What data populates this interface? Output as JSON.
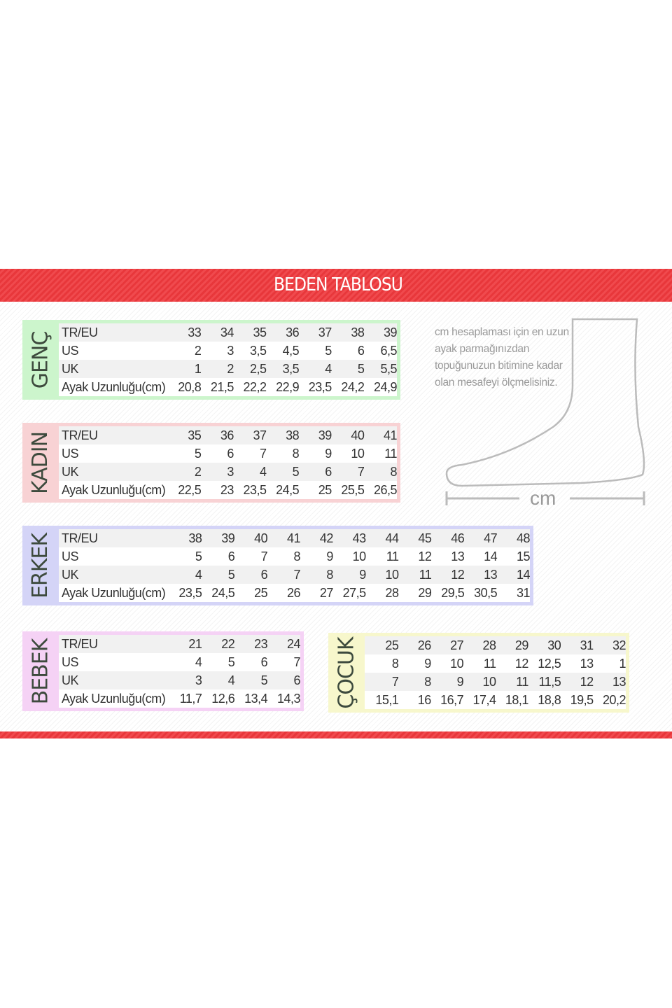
{
  "title": "BEDEN TABLOSU",
  "note": "cm hesaplaması için en uzun ayak parmağınızdan topuğunuzun bitimine kadar olan mesafeyi ölçmelisiniz.",
  "cm_label": "cm",
  "colors": {
    "band": "#e8373b",
    "genc": "#ccf5cc",
    "kadin": "#f8d2d4",
    "erkek": "#d4d4f7",
    "bebek": "#f5d2f5",
    "cocuk": "#f7f7cc"
  },
  "tables": {
    "genc": {
      "label": "GENÇ",
      "rows": [
        {
          "label": "TR/EU",
          "values": [
            "33",
            "34",
            "35",
            "36",
            "37",
            "38",
            "39"
          ]
        },
        {
          "label": "US",
          "values": [
            "2",
            "3",
            "3,5",
            "4,5",
            "5",
            "6",
            "6,5"
          ]
        },
        {
          "label": "UK",
          "values": [
            "1",
            "2",
            "2,5",
            "3,5",
            "4",
            "5",
            "5,5"
          ]
        },
        {
          "label": "Ayak Uzunluğu(cm)",
          "values": [
            "20,8",
            "21,5",
            "22,2",
            "22,9",
            "23,5",
            "24,2",
            "24,9"
          ]
        }
      ]
    },
    "kadin": {
      "label": "KADIN",
      "rows": [
        {
          "label": "TR/EU",
          "values": [
            "35",
            "36",
            "37",
            "38",
            "39",
            "40",
            "41"
          ]
        },
        {
          "label": "US",
          "values": [
            "5",
            "6",
            "7",
            "8",
            "9",
            "10",
            "11"
          ]
        },
        {
          "label": "UK",
          "values": [
            "2",
            "3",
            "4",
            "5",
            "6",
            "7",
            "8"
          ]
        },
        {
          "label": "Ayak Uzunluğu(cm)",
          "values": [
            "22,5",
            "23",
            "23,5",
            "24,5",
            "25",
            "25,5",
            "26,5"
          ]
        }
      ]
    },
    "erkek": {
      "label": "ERKEK",
      "rows": [
        {
          "label": "TR/EU",
          "values": [
            "38",
            "39",
            "40",
            "41",
            "42",
            "43",
            "44",
            "45",
            "46",
            "47",
            "48"
          ]
        },
        {
          "label": "US",
          "values": [
            "5",
            "6",
            "7",
            "8",
            "9",
            "10",
            "11",
            "12",
            "13",
            "14",
            "15"
          ]
        },
        {
          "label": "UK",
          "values": [
            "4",
            "5",
            "6",
            "7",
            "8",
            "9",
            "10",
            "11",
            "12",
            "13",
            "14"
          ]
        },
        {
          "label": "Ayak Uzunluğu(cm)",
          "values": [
            "23,5",
            "24,5",
            "25",
            "26",
            "27",
            "27,5",
            "28",
            "29",
            "29,5",
            "30,5",
            "31"
          ]
        }
      ]
    },
    "bebek": {
      "label": "BEBEK",
      "rows": [
        {
          "label": "TR/EU",
          "values": [
            "21",
            "22",
            "23",
            "24"
          ]
        },
        {
          "label": "US",
          "values": [
            "4",
            "5",
            "6",
            "7"
          ]
        },
        {
          "label": "UK",
          "values": [
            "3",
            "4",
            "5",
            "6"
          ]
        },
        {
          "label": "Ayak Uzunluğu(cm)",
          "values": [
            "11,7",
            "12,6",
            "13,4",
            "14,3"
          ]
        }
      ]
    },
    "cocuk": {
      "label": "ÇOCUK",
      "rows": [
        {
          "label": "",
          "values": [
            "25",
            "26",
            "27",
            "28",
            "29",
            "30",
            "31",
            "32"
          ]
        },
        {
          "label": "",
          "values": [
            "8",
            "9",
            "10",
            "11",
            "12",
            "12,5",
            "13",
            "1"
          ]
        },
        {
          "label": "",
          "values": [
            "7",
            "8",
            "9",
            "10",
            "11",
            "11,5",
            "12",
            "13"
          ]
        },
        {
          "label": "",
          "values": [
            "15,1",
            "16",
            "16,7",
            "17,4",
            "18,1",
            "18,8",
            "19,5",
            "20,2"
          ]
        }
      ]
    }
  }
}
